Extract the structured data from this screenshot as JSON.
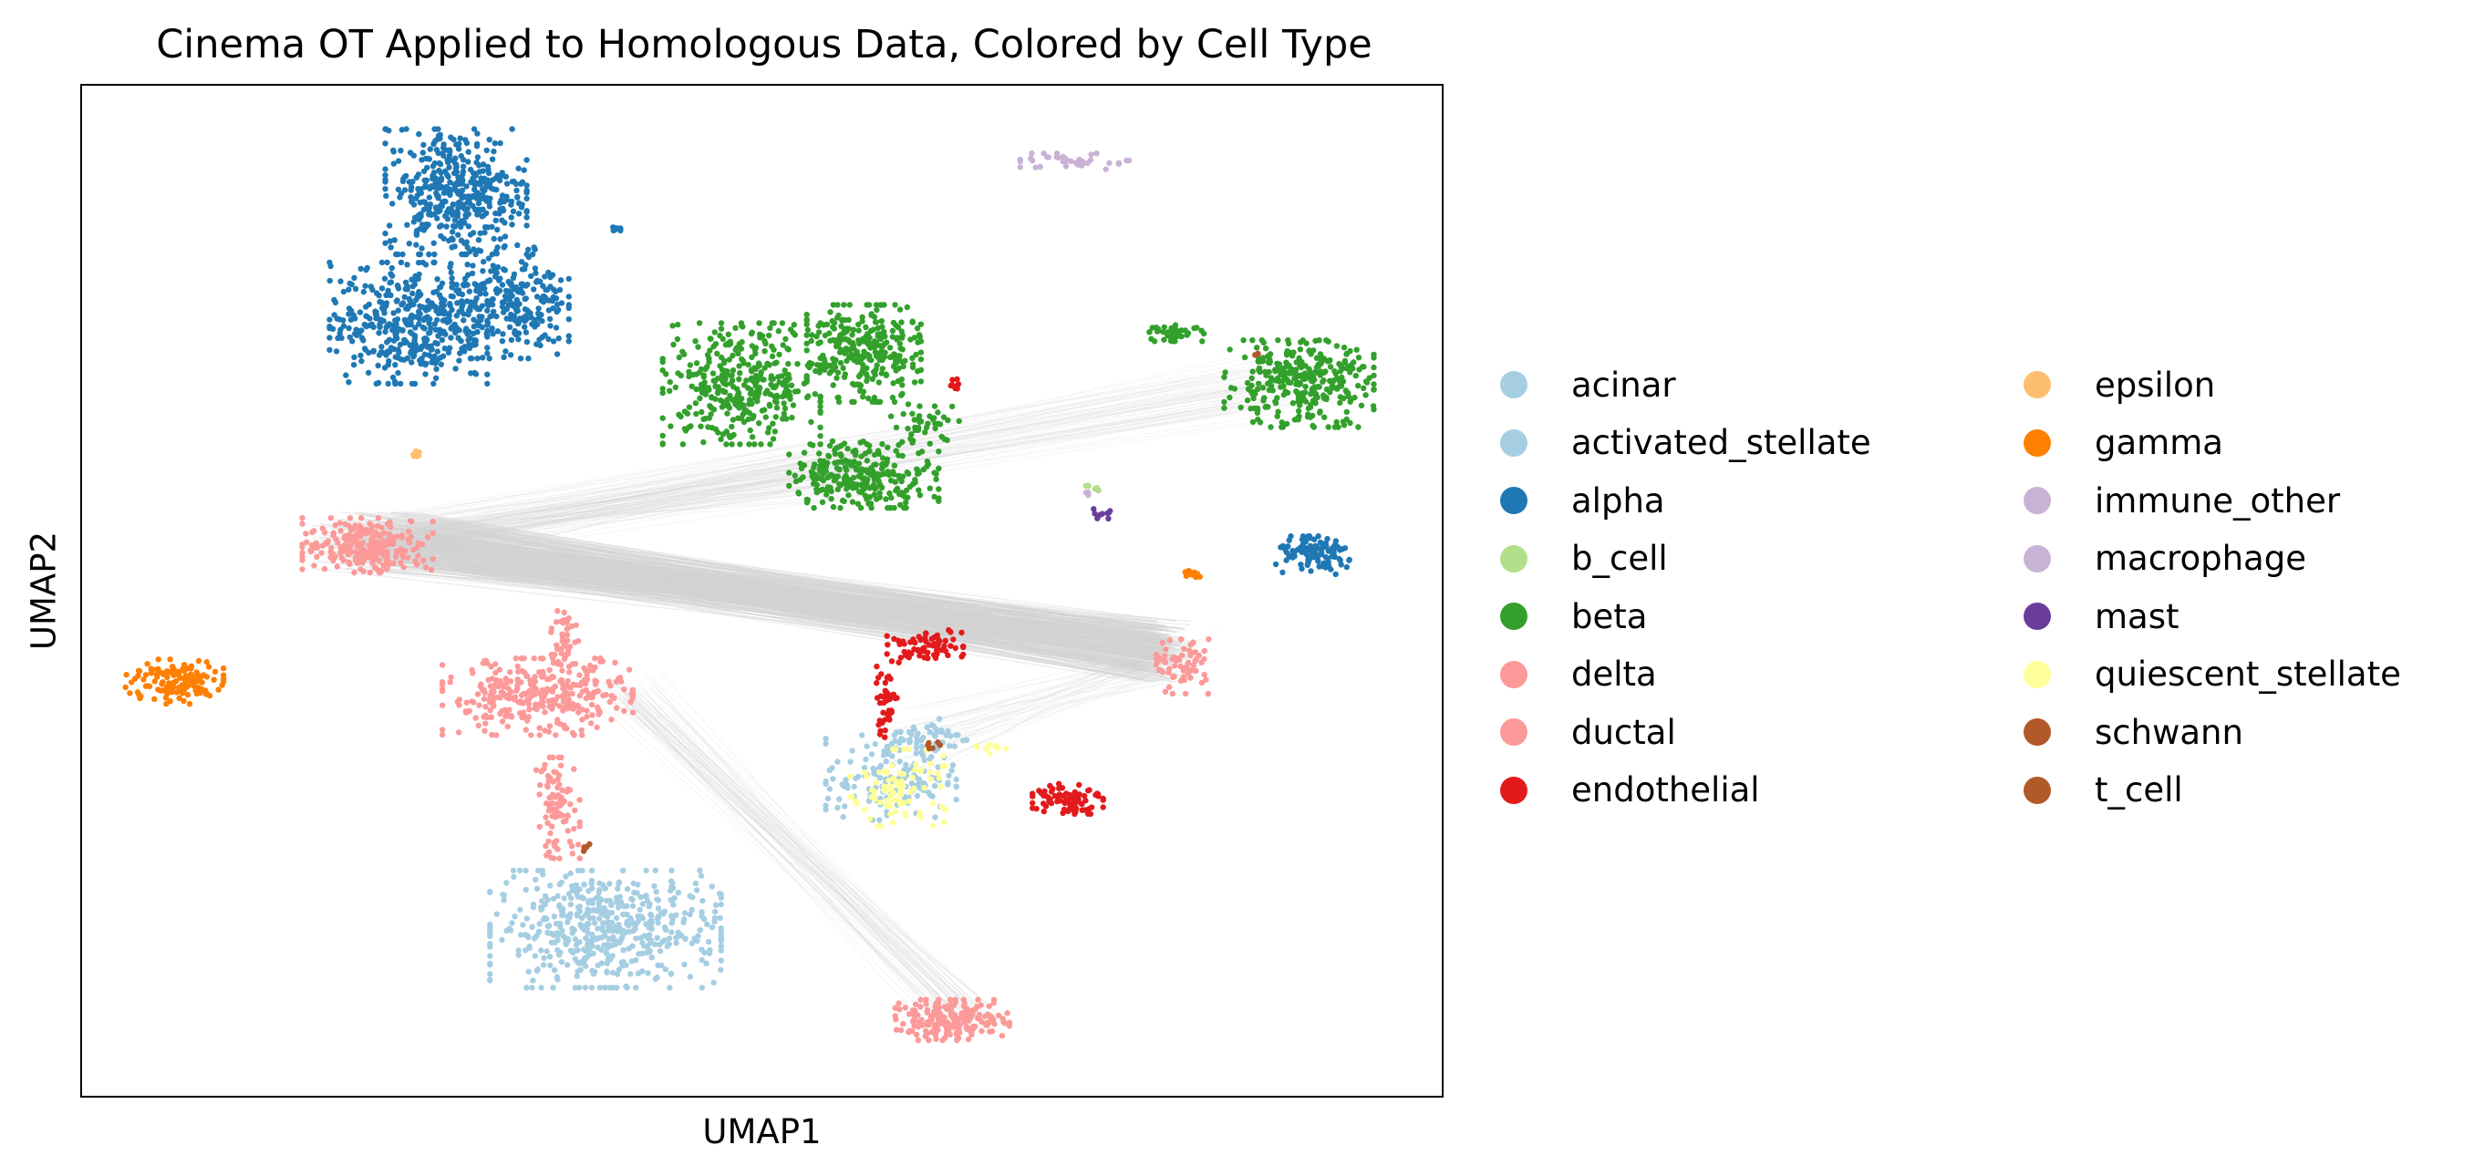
{
  "chart_data": {
    "type": "scatter",
    "title": "Cinema OT Applied to Homologous Data, Colored by Cell Type",
    "xlabel": "UMAP1",
    "ylabel": "UMAP2",
    "xlim": [
      0,
      100
    ],
    "ylim": [
      0,
      100
    ],
    "axis_ticks": false,
    "grid": false,
    "legend_position": "right",
    "legend_columns": 2,
    "connection_lines_color": "#d3d3d3",
    "series": [
      {
        "name": "acinar",
        "color": "#a6cee3",
        "clusters": [
          {
            "cx": 38.5,
            "cy": 16.5,
            "rx": 8.5,
            "ry": 5.8,
            "n": 520
          },
          {
            "cx": 59.5,
            "cy": 31.5,
            "rx": 4.8,
            "ry": 4.2,
            "n": 150
          }
        ]
      },
      {
        "name": "activated_stellate",
        "color": "#a6cee3",
        "clusters": [
          {
            "cx": 62.5,
            "cy": 35.5,
            "rx": 2.6,
            "ry": 1.8,
            "n": 40
          }
        ]
      },
      {
        "name": "alpha",
        "color": "#1f78b4",
        "clusters": [
          {
            "cx": 27.5,
            "cy": 89.5,
            "rx": 5.2,
            "ry": 6.2,
            "n": 420
          },
          {
            "cx": 24.0,
            "cy": 76.5,
            "rx": 5.8,
            "ry": 6.0,
            "n": 420
          },
          {
            "cx": 31.5,
            "cy": 78.5,
            "rx": 4.3,
            "ry": 5.5,
            "n": 260
          },
          {
            "cx": 90.8,
            "cy": 53.5,
            "rx": 3.0,
            "ry": 1.9,
            "n": 110
          },
          {
            "cx": 39.2,
            "cy": 85.8,
            "rx": 0.4,
            "ry": 0.4,
            "n": 8
          }
        ]
      },
      {
        "name": "b_cell",
        "color": "#b2df8a",
        "clusters": [
          {
            "cx": 74.3,
            "cy": 60.3,
            "rx": 0.6,
            "ry": 0.5,
            "n": 6
          }
        ]
      },
      {
        "name": "beta",
        "color": "#33a02c",
        "clusters": [
          {
            "cx": 48.5,
            "cy": 70.5,
            "rx": 5.8,
            "ry": 6.0,
            "n": 380
          },
          {
            "cx": 57.5,
            "cy": 73.5,
            "rx": 4.2,
            "ry": 4.8,
            "n": 300
          },
          {
            "cx": 57.5,
            "cy": 61.5,
            "rx": 5.5,
            "ry": 3.3,
            "n": 280
          },
          {
            "cx": 89.5,
            "cy": 70.5,
            "rx": 5.5,
            "ry": 4.3,
            "n": 320
          },
          {
            "cx": 80.5,
            "cy": 75.5,
            "rx": 2.0,
            "ry": 0.8,
            "n": 45
          },
          {
            "cx": 62.0,
            "cy": 66.5,
            "rx": 2.5,
            "ry": 2.0,
            "n": 40
          }
        ]
      },
      {
        "name": "delta",
        "color": "#fb9a99",
        "clusters": [
          {
            "cx": 21.0,
            "cy": 54.5,
            "rx": 4.8,
            "ry": 2.7,
            "n": 240
          },
          {
            "cx": 81.0,
            "cy": 42.5,
            "rx": 2.0,
            "ry": 2.7,
            "n": 70
          }
        ]
      },
      {
        "name": "ductal",
        "color": "#fb9a99",
        "clusters": [
          {
            "cx": 33.5,
            "cy": 39.5,
            "rx": 7.0,
            "ry": 3.8,
            "n": 330
          },
          {
            "cx": 35.0,
            "cy": 28.5,
            "rx": 1.6,
            "ry": 5.0,
            "n": 90
          },
          {
            "cx": 35.5,
            "cy": 45.5,
            "rx": 1.0,
            "ry": 3.0,
            "n": 40
          },
          {
            "cx": 64.0,
            "cy": 7.5,
            "rx": 4.2,
            "ry": 2.0,
            "n": 200
          }
        ]
      },
      {
        "name": "endothelial",
        "color": "#e31a1c",
        "clusters": [
          {
            "cx": 62.0,
            "cy": 44.5,
            "rx": 2.8,
            "ry": 1.6,
            "n": 70
          },
          {
            "cx": 59.0,
            "cy": 39.0,
            "rx": 1.0,
            "ry": 3.5,
            "n": 40
          },
          {
            "cx": 72.5,
            "cy": 29.5,
            "rx": 2.6,
            "ry": 1.6,
            "n": 80
          },
          {
            "cx": 64.2,
            "cy": 70.5,
            "rx": 0.5,
            "ry": 0.6,
            "n": 8
          }
        ]
      },
      {
        "name": "epsilon",
        "color": "#fdbf6f",
        "clusters": [
          {
            "cx": 24.5,
            "cy": 63.5,
            "rx": 0.4,
            "ry": 0.7,
            "n": 8
          }
        ]
      },
      {
        "name": "gamma",
        "color": "#ff7f00",
        "clusters": [
          {
            "cx": 6.8,
            "cy": 41.0,
            "rx": 3.6,
            "ry": 2.2,
            "n": 130
          },
          {
            "cx": 82.0,
            "cy": 51.5,
            "rx": 1.0,
            "ry": 0.8,
            "n": 15
          }
        ]
      },
      {
        "name": "immune_other",
        "color": "#cab2d6",
        "clusters": [
          {
            "cx": 74.2,
            "cy": 59.8,
            "rx": 0.5,
            "ry": 0.5,
            "n": 4
          }
        ]
      },
      {
        "name": "macrophage",
        "color": "#cab2d6",
        "clusters": [
          {
            "cx": 73.0,
            "cy": 92.5,
            "rx": 4.0,
            "ry": 0.8,
            "n": 40
          }
        ]
      },
      {
        "name": "mast",
        "color": "#6a3d9a",
        "clusters": [
          {
            "cx": 75.0,
            "cy": 57.5,
            "rx": 0.6,
            "ry": 0.6,
            "n": 10
          }
        ]
      },
      {
        "name": "quiescent_stellate",
        "color": "#ffff99",
        "clusters": [
          {
            "cx": 60.0,
            "cy": 30.5,
            "rx": 3.5,
            "ry": 3.8,
            "n": 90
          },
          {
            "cx": 67.0,
            "cy": 34.5,
            "rx": 1.2,
            "ry": 0.6,
            "n": 10
          }
        ]
      },
      {
        "name": "schwann",
        "color": "#b15928",
        "clusters": [
          {
            "cx": 62.5,
            "cy": 34.5,
            "rx": 0.6,
            "ry": 0.5,
            "n": 6
          },
          {
            "cx": 37.0,
            "cy": 24.5,
            "rx": 0.4,
            "ry": 0.6,
            "n": 5
          }
        ]
      },
      {
        "name": "t_cell",
        "color": "#b15928",
        "clusters": [
          {
            "cx": 86.5,
            "cy": 73.5,
            "rx": 0.4,
            "ry": 0.4,
            "n": 3
          }
        ]
      }
    ],
    "connection_bundles": [
      {
        "from": {
          "cx": 22.0,
          "cy": 55.0,
          "rx": 5.0,
          "ry": 2.8
        },
        "to": {
          "cx": 79.5,
          "cy": 44.0,
          "rx": 2.0,
          "ry": 3.0
        },
        "n": 320,
        "opacity": 0.45
      },
      {
        "from": {
          "cx": 22.0,
          "cy": 55.0,
          "rx": 5.0,
          "ry": 2.5
        },
        "to": {
          "cx": 88.0,
          "cy": 70.5,
          "rx": 5.5,
          "ry": 3.5
        },
        "n": 60,
        "opacity": 0.18
      },
      {
        "from": {
          "cx": 23.0,
          "cy": 55.0,
          "rx": 5.0,
          "ry": 2.5
        },
        "to": {
          "cx": 58.0,
          "cy": 62.0,
          "rx": 5.0,
          "ry": 3.0
        },
        "n": 40,
        "opacity": 0.18
      },
      {
        "from": {
          "cx": 40.0,
          "cy": 40.0,
          "rx": 3.0,
          "ry": 2.0
        },
        "to": {
          "cx": 65.0,
          "cy": 8.0,
          "rx": 3.0,
          "ry": 1.5
        },
        "n": 50,
        "opacity": 0.22
      },
      {
        "from": {
          "cx": 60.0,
          "cy": 35.0,
          "rx": 4.0,
          "ry": 4.0
        },
        "to": {
          "cx": 82.0,
          "cy": 44.0,
          "rx": 2.0,
          "ry": 2.5
        },
        "n": 30,
        "opacity": 0.2
      }
    ]
  },
  "legend": {
    "items": [
      {
        "label": "acinar",
        "color": "#a6cee3"
      },
      {
        "label": "activated_stellate",
        "color": "#a6cee3"
      },
      {
        "label": "alpha",
        "color": "#1f78b4"
      },
      {
        "label": "b_cell",
        "color": "#b2df8a"
      },
      {
        "label": "beta",
        "color": "#33a02c"
      },
      {
        "label": "delta",
        "color": "#fb9a99"
      },
      {
        "label": "ductal",
        "color": "#fb9a99"
      },
      {
        "label": "endothelial",
        "color": "#e31a1c"
      },
      {
        "label": "epsilon",
        "color": "#fdbf6f"
      },
      {
        "label": "gamma",
        "color": "#ff7f00"
      },
      {
        "label": "immune_other",
        "color": "#cab2d6"
      },
      {
        "label": "macrophage",
        "color": "#cab2d6"
      },
      {
        "label": "mast",
        "color": "#6a3d9a"
      },
      {
        "label": "quiescent_stellate",
        "color": "#ffff99"
      },
      {
        "label": "schwann",
        "color": "#b15928"
      },
      {
        "label": "t_cell",
        "color": "#b15928"
      }
    ]
  }
}
